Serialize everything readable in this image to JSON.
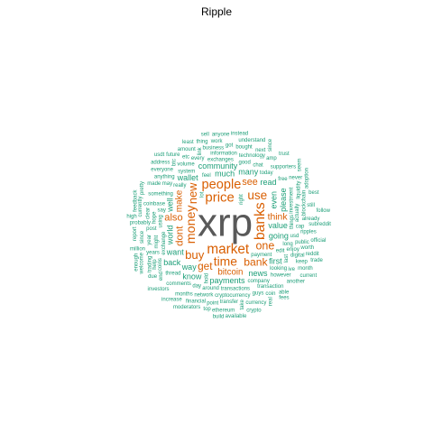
{
  "title": "Ripple",
  "colors": {
    "tier1": "#595959",
    "tier2": "#d95f02",
    "tier3": "#1b9e77",
    "tier4": "#1b9e77"
  },
  "words": [
    {
      "text": "xrp",
      "tier": 1
    },
    {
      "text": "banks",
      "tier": 2
    },
    {
      "text": "market",
      "tier": 2
    },
    {
      "text": "price",
      "tier": 2
    },
    {
      "text": "people",
      "tier": 2
    },
    {
      "text": "money",
      "tier": 2
    },
    {
      "text": "time",
      "tier": 2
    },
    {
      "text": "use",
      "tier": 2
    },
    {
      "text": "buy",
      "tier": 2
    },
    {
      "text": "new",
      "tier": 2
    },
    {
      "text": "one",
      "tier": 2
    },
    {
      "text": "bank",
      "tier": 2
    },
    {
      "text": "get",
      "tier": 2
    },
    {
      "text": "dont",
      "tier": 2
    },
    {
      "text": "also",
      "tier": 2
    },
    {
      "text": "see",
      "tier": 2
    },
    {
      "text": "think",
      "tier": 2
    },
    {
      "text": "make",
      "tier": 2
    },
    {
      "text": "bitcoin",
      "tier": 2
    },
    {
      "text": "much",
      "tier": 3
    },
    {
      "text": "value",
      "tier": 3
    },
    {
      "text": "even",
      "tier": 3
    },
    {
      "text": "payments",
      "tier": 3
    },
    {
      "text": "going",
      "tier": 3
    },
    {
      "text": "community",
      "tier": 3
    },
    {
      "text": "world",
      "tier": 3
    },
    {
      "text": "many",
      "tier": 3
    },
    {
      "text": "want",
      "tier": 3
    },
    {
      "text": "way",
      "tier": 3
    },
    {
      "text": "please",
      "tier": 3
    },
    {
      "text": "wallet",
      "tier": 3
    },
    {
      "text": "read",
      "tier": 3
    },
    {
      "text": "news",
      "tier": 3
    },
    {
      "text": "well",
      "tier": 3
    },
    {
      "text": "know",
      "tier": 3
    },
    {
      "text": "first",
      "tier": 3
    },
    {
      "text": "back",
      "tier": 3
    },
    {
      "text": "exchange",
      "tier": 4
    },
    {
      "text": "payment",
      "tier": 4
    },
    {
      "text": "exchanges",
      "tier": 4
    },
    {
      "text": "transactions",
      "tier": 4
    },
    {
      "text": "right",
      "tier": 4
    },
    {
      "text": "feel",
      "tier": 4
    },
    {
      "text": "really",
      "tier": 4
    },
    {
      "text": "edit",
      "tier": 4
    },
    {
      "text": "using",
      "tier": 4
    },
    {
      "text": "long",
      "tier": 4
    },
    {
      "text": "say",
      "tier": 4
    },
    {
      "text": "company",
      "tier": 4
    },
    {
      "text": "things",
      "tier": 4
    },
    {
      "text": "system",
      "tier": 4
    },
    {
      "text": "today",
      "tier": 4
    },
    {
      "text": "good",
      "tier": 4
    },
    {
      "text": "investment",
      "tier": 4
    },
    {
      "text": "around",
      "tier": 4
    },
    {
      "text": "something",
      "tier": 4
    },
    {
      "text": "coinbase",
      "tier": 4
    },
    {
      "text": "might",
      "tier": 4
    },
    {
      "text": "looking",
      "tier": 4
    },
    {
      "text": "chat",
      "tier": 4
    },
    {
      "text": "usd",
      "tier": 4
    },
    {
      "text": "hold",
      "tier": 4
    },
    {
      "text": "thread",
      "tier": 4
    },
    {
      "text": "information",
      "tier": 4
    },
    {
      "text": "cryptocurrency",
      "tier": 4
    },
    {
      "text": "hope",
      "tier": 4
    },
    {
      "text": "may",
      "tier": 4
    },
    {
      "text": "volume",
      "tier": 4
    },
    {
      "text": "day",
      "tier": 4
    },
    {
      "text": "lot",
      "tier": 4
    },
    {
      "text": "enjoy",
      "tier": 4
    },
    {
      "text": "technology",
      "tier": 4
    },
    {
      "text": "transaction",
      "tier": 4
    },
    {
      "text": "actually",
      "tier": 4
    },
    {
      "text": "however",
      "tier": 4
    },
    {
      "text": "every",
      "tier": 4
    },
    {
      "text": "post",
      "tier": 4
    },
    {
      "text": "last",
      "tier": 4
    },
    {
      "text": "free",
      "tier": 4
    },
    {
      "text": "comments",
      "tier": 4
    },
    {
      "text": "cap",
      "tier": 4
    },
    {
      "text": "coins",
      "tier": 4
    },
    {
      "text": "network",
      "tier": 4
    },
    {
      "text": "anything",
      "tier": 4
    },
    {
      "text": "years",
      "tier": 4
    },
    {
      "text": "year",
      "tier": 4
    },
    {
      "text": "public",
      "tier": 4
    },
    {
      "text": "business",
      "tier": 4
    },
    {
      "text": "digital",
      "tier": 4
    },
    {
      "text": "blockchain",
      "tier": 4
    },
    {
      "text": "transfer",
      "tier": 4
    },
    {
      "text": "bought",
      "tier": 4
    },
    {
      "text": "supporters",
      "tier": 4
    },
    {
      "text": "liquidity",
      "tier": 4
    },
    {
      "text": "guys",
      "tier": 4
    },
    {
      "text": "months",
      "tier": 4
    },
    {
      "text": "ripples",
      "tier": 4
    },
    {
      "text": "clear",
      "tier": 4
    },
    {
      "text": "everyone",
      "tier": 4
    },
    {
      "text": "made",
      "tier": 4
    },
    {
      "text": "probably",
      "tier": 4
    },
    {
      "text": "help",
      "tier": 4
    },
    {
      "text": "etc",
      "tier": 4
    },
    {
      "text": "already",
      "tier": 4
    },
    {
      "text": "amp",
      "tier": 4
    },
    {
      "text": "since",
      "tier": 4
    },
    {
      "text": "point",
      "tier": 4
    },
    {
      "text": "got",
      "tier": 4
    },
    {
      "text": "next",
      "tier": 4
    },
    {
      "text": "end",
      "tier": 4
    },
    {
      "text": "never",
      "tier": 4
    },
    {
      "text": "worth",
      "tier": 4
    },
    {
      "text": "keep",
      "tier": 4
    },
    {
      "text": "link",
      "tier": 4
    },
    {
      "text": "currency",
      "tier": 4
    },
    {
      "text": "coin",
      "tier": 4
    },
    {
      "text": "financial",
      "tier": 4
    },
    {
      "text": "btc",
      "tier": 4
    },
    {
      "text": "amount",
      "tier": 4
    },
    {
      "text": "work",
      "tier": 4
    },
    {
      "text": "still",
      "tier": 4
    },
    {
      "text": "take",
      "tier": 4
    },
    {
      "text": "future",
      "tier": 4
    },
    {
      "text": "ethereum",
      "tier": 4
    },
    {
      "text": "thing",
      "tier": 4
    },
    {
      "text": "currently",
      "tier": 4
    },
    {
      "text": "understand",
      "tier": 4
    },
    {
      "text": "million",
      "tier": 4
    },
    {
      "text": "address",
      "tier": 4
    },
    {
      "text": "trading",
      "tier": 4
    },
    {
      "text": "month",
      "tier": 4
    },
    {
      "text": "another",
      "tier": 4
    },
    {
      "text": "anyone",
      "tier": 4
    },
    {
      "text": "welcome",
      "tier": 4
    },
    {
      "text": "reddit",
      "tier": 4
    },
    {
      "text": "subreddit",
      "tier": 4
    },
    {
      "text": "moderators",
      "tier": 4
    },
    {
      "text": "feedback",
      "tier": 4
    },
    {
      "text": "increase",
      "tier": 4
    },
    {
      "text": "investors",
      "tier": 4
    },
    {
      "text": "official",
      "tier": 4
    },
    {
      "text": "report",
      "tier": 4
    },
    {
      "text": "available",
      "tier": 4
    },
    {
      "text": "able",
      "tier": 4
    },
    {
      "text": "due",
      "tier": 4
    },
    {
      "text": "adoption",
      "tier": 4
    },
    {
      "text": "crypto",
      "tier": 4
    },
    {
      "text": "high",
      "tier": 4
    },
    {
      "text": "instead",
      "tier": 4
    },
    {
      "text": "pretty",
      "tier": 4
    },
    {
      "text": "least",
      "tier": 4
    },
    {
      "text": "trust",
      "tier": 4
    },
    {
      "text": "top",
      "tier": 4
    },
    {
      "text": "since",
      "tier": 4
    },
    {
      "text": "best",
      "tier": 4
    },
    {
      "text": "sell",
      "tier": 4
    },
    {
      "text": "fees",
      "tier": 4
    },
    {
      "text": "real",
      "tier": 4
    },
    {
      "text": "follow",
      "tier": 4
    },
    {
      "text": "current",
      "tier": 4
    },
    {
      "text": "build",
      "tier": 4
    },
    {
      "text": "seem",
      "tier": 4
    },
    {
      "text": "ive",
      "tier": 4
    },
    {
      "text": "usdt",
      "tier": 4
    },
    {
      "text": "trade",
      "tier": 4
    },
    {
      "text": "enough",
      "tier": 4
    }
  ]
}
